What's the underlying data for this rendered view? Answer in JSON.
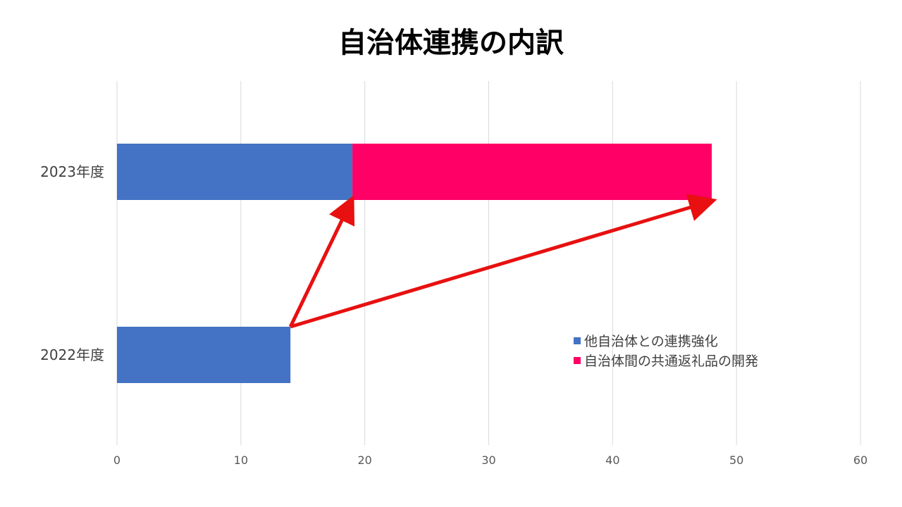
{
  "chart_data": {
    "type": "bar",
    "orientation": "horizontal",
    "stacked": true,
    "title": "自治体連携の内訳",
    "categories": [
      "2023年度",
      "2022年度"
    ],
    "series": [
      {
        "name": "他自治体との連携強化",
        "values": [
          19,
          14
        ],
        "color": "#4472c4"
      },
      {
        "name": "自治体間の共通返礼品の開発",
        "values": [
          29,
          0
        ],
        "color": "#ff0066"
      }
    ],
    "xlim": [
      0,
      60
    ],
    "xticks": [
      0,
      10,
      20,
      30,
      40,
      50,
      60
    ],
    "grid": true,
    "legend_position": "bottom-right",
    "annotation_color": "#e81010"
  }
}
